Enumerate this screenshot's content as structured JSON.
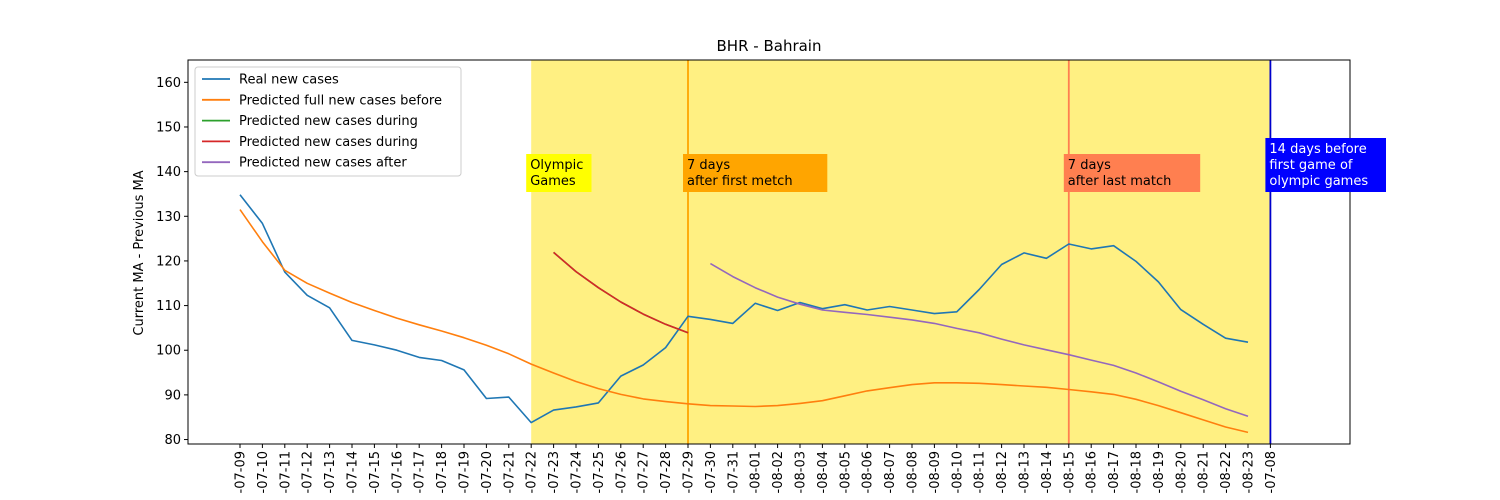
{
  "chart_data": {
    "type": "line",
    "title": "BHR - Bahrain",
    "xlabel": "",
    "ylabel": "Current MA - Previous MA",
    "ylim": [
      79,
      165
    ],
    "yticks": [
      80,
      90,
      100,
      110,
      120,
      130,
      140,
      150,
      160
    ],
    "x_labels": [
      "-07-09",
      "-07-10",
      "-07-11",
      "-07-12",
      "-07-13",
      "-07-14",
      "-07-15",
      "-07-16",
      "-07-17",
      "-07-18",
      "-07-19",
      "-07-20",
      "-07-21",
      "-07-22",
      "-07-23",
      "-07-24",
      "-07-25",
      "-07-26",
      "-07-27",
      "-07-28",
      "-07-29",
      "-07-30",
      "-07-31",
      "-08-01",
      "-08-02",
      "-08-03",
      "-08-04",
      "-08-05",
      "-08-06",
      "-08-07",
      "-08-08",
      "-08-09",
      "-08-10",
      "-08-11",
      "-08-12",
      "-08-13",
      "-08-14",
      "-08-15",
      "-08-16",
      "-08-17",
      "-08-18",
      "-08-19",
      "-08-20",
      "-08-21",
      "-08-22",
      "-08-23",
      "-07-08"
    ],
    "series": [
      {
        "name": "Real new cases",
        "color": "#1f77b4",
        "start_index": 0,
        "values": [
          134.8,
          128.4,
          117.5,
          112.3,
          109.5,
          102.2,
          101.2,
          100.0,
          98.4,
          97.7,
          95.6,
          89.2,
          89.5,
          83.8,
          86.6,
          87.3,
          88.2,
          94.2,
          96.7,
          100.6,
          107.6,
          106.9,
          106.0,
          110.5,
          108.9,
          110.7,
          109.3,
          110.2,
          109.0,
          109.8,
          109.0,
          108.2,
          108.6,
          113.6,
          119.2,
          121.8,
          120.6,
          123.8,
          122.7,
          123.4,
          119.9,
          115.3,
          109.1,
          105.8,
          102.7,
          101.8
        ]
      },
      {
        "name": "Predicted full new cases before",
        "color": "#ff7f0e",
        "start_index": 0,
        "values": [
          131.5,
          124.3,
          117.9,
          115.0,
          112.8,
          110.7,
          108.9,
          107.2,
          105.7,
          104.3,
          102.8,
          101.1,
          99.2,
          96.9,
          94.9,
          93.0,
          91.4,
          90.1,
          89.1,
          88.5,
          88.0,
          87.6,
          87.5,
          87.4,
          87.6,
          88.1,
          88.7,
          89.8,
          90.9,
          91.6,
          92.3,
          92.7,
          92.7,
          92.6,
          92.3,
          92.0,
          91.7,
          91.2,
          90.7,
          90.1,
          89.0,
          87.6,
          86.0,
          84.4,
          82.8,
          81.6
        ]
      },
      {
        "name": "Predicted new cases during",
        "color": "#2ca02c",
        "start_index": 14,
        "values": [
          121.9,
          117.6,
          114.0,
          110.8,
          108.1,
          105.8,
          103.9
        ]
      },
      {
        "name": "Predicted new cases during",
        "color": "#d62728",
        "start_index": 14,
        "values": [
          121.9,
          117.6,
          114.0,
          110.8,
          108.1,
          105.8,
          103.9
        ]
      },
      {
        "name": "Predicted new cases after",
        "color": "#9467bd",
        "start_index": 21,
        "values": [
          119.4,
          116.5,
          114.0,
          111.9,
          110.3,
          109.0,
          108.5,
          108.0,
          107.4,
          106.8,
          106.0,
          104.9,
          103.9,
          102.5,
          101.2,
          100.1,
          99.0,
          97.8,
          96.6,
          94.9,
          92.9,
          90.8,
          88.9,
          86.9,
          85.2
        ]
      }
    ],
    "shaded_region": {
      "from_index": 13,
      "to_index": 46,
      "color": "#fff082"
    },
    "vertical_lines": [
      {
        "index": 20,
        "color": "#ffa500"
      },
      {
        "index": 37,
        "color": "#ff7f50"
      },
      {
        "index": 46,
        "color": "#0000cc"
      }
    ],
    "annotations": [
      {
        "index": 13,
        "lines": [
          "Olympic",
          "Games"
        ],
        "bg": "#ffff00",
        "text_color": "#000000"
      },
      {
        "index": 20,
        "lines": [
          "7 days",
          "after first metch"
        ],
        "bg": "#ffa500",
        "text_color": "#000000"
      },
      {
        "index": 37,
        "lines": [
          "7 days",
          "after last match"
        ],
        "bg": "#ff7f50",
        "text_color": "#000000"
      },
      {
        "index": 46,
        "lines": [
          "14 days before",
          "first game of",
          "olympic games"
        ],
        "bg": "#0000ff",
        "text_color": "#ffffff"
      }
    ],
    "legend_position": "top-left",
    "grid": false
  }
}
